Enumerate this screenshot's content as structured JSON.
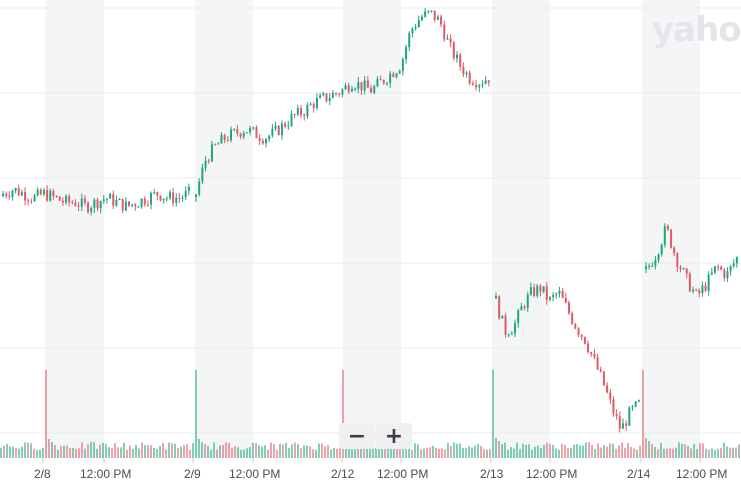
{
  "watermark": "yahoo",
  "zoom": {
    "out_symbol": "−",
    "in_symbol": "+"
  },
  "colors": {
    "up": "#1fa67a",
    "down": "#e05a66",
    "grid": "#e9ebee",
    "band": "#f4f5f6"
  },
  "chart_data": {
    "type": "candlestick",
    "title": "",
    "xlabel": "",
    "ylabel": "",
    "grid": true,
    "x_tick_labels": [
      "2/8",
      "12:00 PM",
      "2/9",
      "12:00 PM",
      "2/12",
      "12:00 PM",
      "2/13",
      "12:00 PM",
      "2/14",
      "12:00 PM"
    ],
    "price_path_relative": {
      "note_units": "relative price level, 0 = lowest shown, 100 = highest shown",
      "sessions": [
        {
          "day": "2/8",
          "levels": [
            58,
            59,
            58,
            57,
            58,
            57,
            56,
            56,
            55,
            56,
            57,
            56,
            55,
            56,
            57,
            58,
            57,
            57,
            58
          ]
        },
        {
          "day": "2/9",
          "levels": [
            58,
            66,
            69,
            71,
            72,
            73,
            72,
            71,
            72,
            74,
            76,
            77,
            79,
            80,
            81,
            82,
            84,
            83,
            82,
            84,
            86,
            88,
            96,
            99,
            100,
            98,
            92,
            88,
            85,
            84,
            85
          ]
        },
        {
          "day": "2/13",
          "levels": [
            33,
            26,
            27,
            32,
            35,
            36,
            33,
            35,
            31,
            27,
            24,
            19,
            14,
            8,
            3,
            7,
            9
          ]
        },
        {
          "day": "2/14",
          "levels": [
            40,
            44,
            50,
            43,
            38,
            34,
            37,
            41,
            39,
            43
          ]
        }
      ]
    },
    "volume_profile": {
      "note_units": "relative volume, spikes at session opens",
      "spike_days": [
        "2/8",
        "2/9",
        "2/12",
        "2/13",
        "2/14"
      ]
    }
  }
}
